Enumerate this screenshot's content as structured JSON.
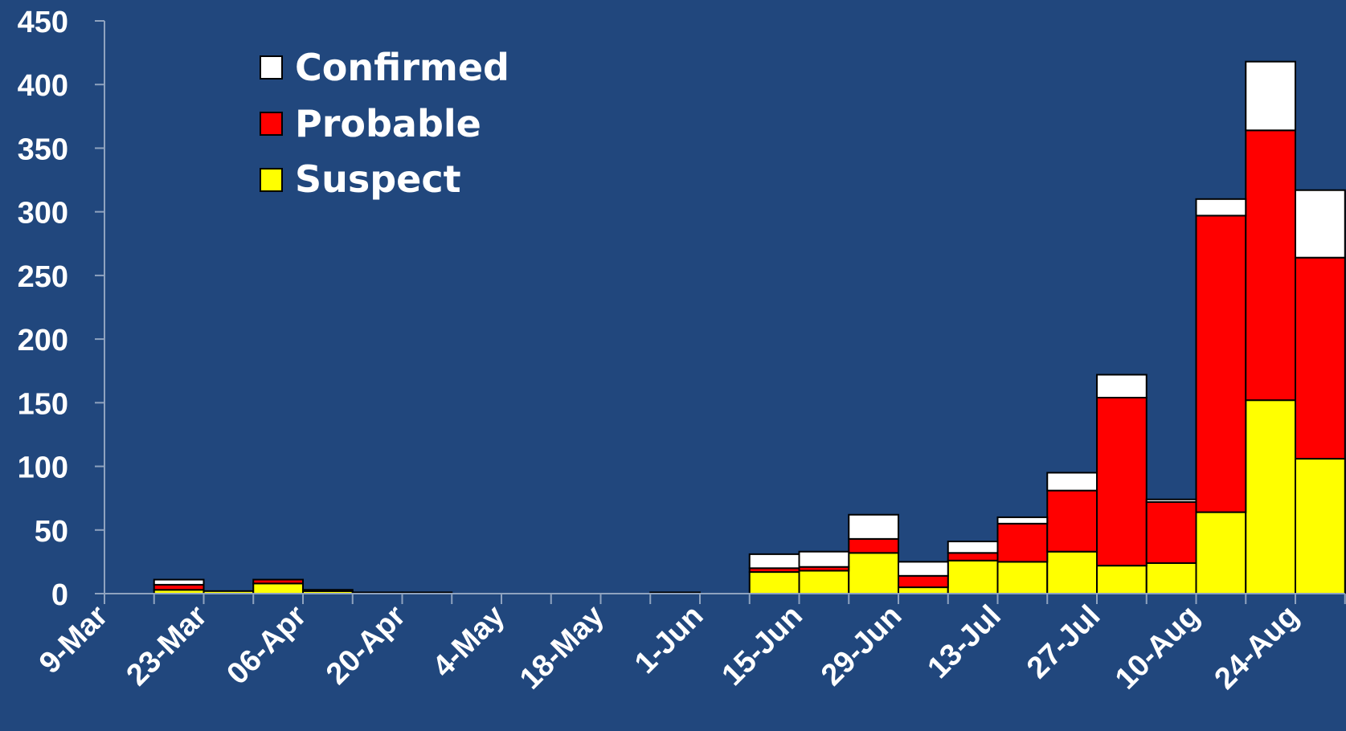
{
  "chart_data": {
    "type": "bar",
    "stacked": true,
    "title": "",
    "xlabel": "",
    "ylabel": "",
    "ylim": [
      0,
      450
    ],
    "yticks": [
      0,
      50,
      100,
      150,
      200,
      250,
      300,
      350,
      400,
      450
    ],
    "xtick_labels": [
      "9-Mar",
      "23-Mar",
      "06-Apr",
      "20-Apr",
      "4-May",
      "18-May",
      "1-Jun",
      "15-Jun",
      "29-Jun",
      "13-Jul",
      "27-Jul",
      "10-Aug",
      "24-Aug"
    ],
    "background_color": "#21477d",
    "legend_position": "top-left",
    "series": [
      {
        "name": "Suspect",
        "color": "#ffff00",
        "values": [
          0,
          3,
          2,
          8,
          2,
          1,
          0,
          0,
          0,
          0,
          0,
          1,
          0,
          17,
          18,
          32,
          5,
          26,
          25,
          33,
          22,
          24,
          64,
          152,
          106
        ]
      },
      {
        "name": "Probable",
        "color": "#ff0000",
        "values": [
          0,
          4,
          0,
          3,
          1,
          0,
          1,
          0,
          0,
          0,
          0,
          0,
          0,
          3,
          3,
          11,
          9,
          6,
          30,
          48,
          132,
          48,
          233,
          212,
          158
        ]
      },
      {
        "name": "Confirmed",
        "color": "#ffffff",
        "values": [
          0,
          4,
          0,
          0,
          0,
          0,
          0,
          0,
          0,
          0,
          0,
          0,
          0,
          11,
          12,
          19,
          11,
          9,
          5,
          14,
          18,
          2,
          13,
          54,
          53
        ]
      }
    ],
    "legend": [
      {
        "name": "Confirmed",
        "color": "#ffffff"
      },
      {
        "name": "Probable",
        "color": "#ff0000"
      },
      {
        "name": "Suspect",
        "color": "#ffff00"
      }
    ]
  }
}
